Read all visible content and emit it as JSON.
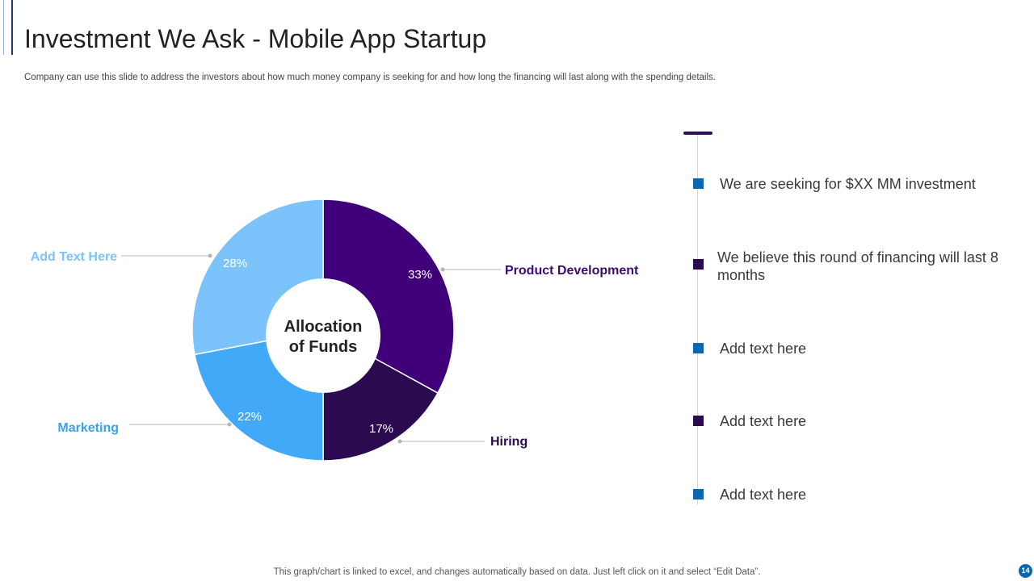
{
  "slide": {
    "title": "Investment We Ask - Mobile App Startup",
    "subtitle": "Company can use this slide to address the investors about how much money company is seeking for and how long the financing will last along with the spending details.",
    "footer": "This graph/chart is linked to excel,  and changes automatically based on data. Just left click on it and select “Edit Data”.",
    "page_number": "14"
  },
  "chart_data": {
    "type": "pie",
    "donut": true,
    "center_label_lines": [
      "Allocation",
      "of Funds"
    ],
    "slices": [
      {
        "name": "Product Development",
        "value": 33,
        "label": "33%",
        "color": "#40007a",
        "label_color": "#3d0a6e"
      },
      {
        "name": "Hiring",
        "value": 17,
        "label": "17%",
        "color": "#2b0a4f",
        "label_color": "#2b0a4f"
      },
      {
        "name": "Marketing",
        "value": 22,
        "label": "22%",
        "color": "#41a9f7",
        "label_color": "#3aa2ee"
      },
      {
        "name": "Add  Text Here",
        "value": 28,
        "label": "28%",
        "color": "#7cc3fb",
        "label_color": "#7cc3fb"
      }
    ]
  },
  "bullets": [
    {
      "text": "We are seeking for $XX MM  investment",
      "color": "#0b67b0"
    },
    {
      "text": "We believe this round of financing will last 8 months",
      "color": "#2b0a4f"
    },
    {
      "text": "Add text here",
      "color": "#0b67b0"
    },
    {
      "text": "Add text here",
      "color": "#2b0a4f"
    },
    {
      "text": "Add text here",
      "color": "#0b67b0"
    }
  ]
}
